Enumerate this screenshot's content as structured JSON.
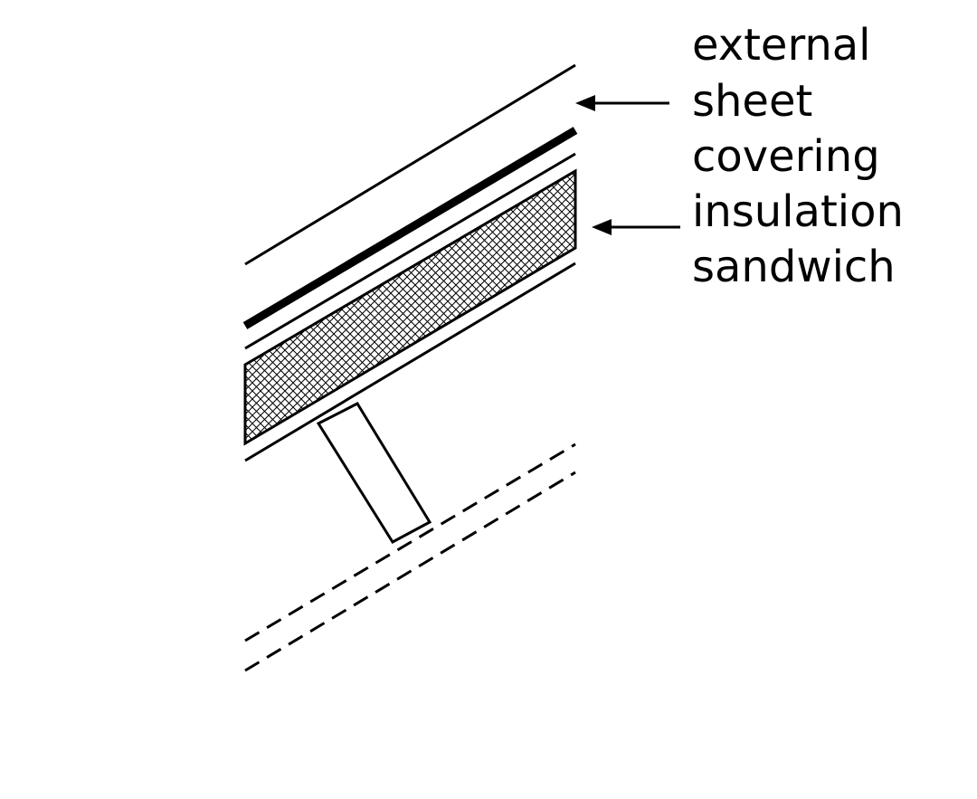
{
  "labels": {
    "line1": "external",
    "line2": "sheet",
    "line3": "covering",
    "line4": "insulation",
    "line5": "sandwich"
  },
  "colors": {
    "ink": "#000000",
    "background": "#ffffff"
  }
}
